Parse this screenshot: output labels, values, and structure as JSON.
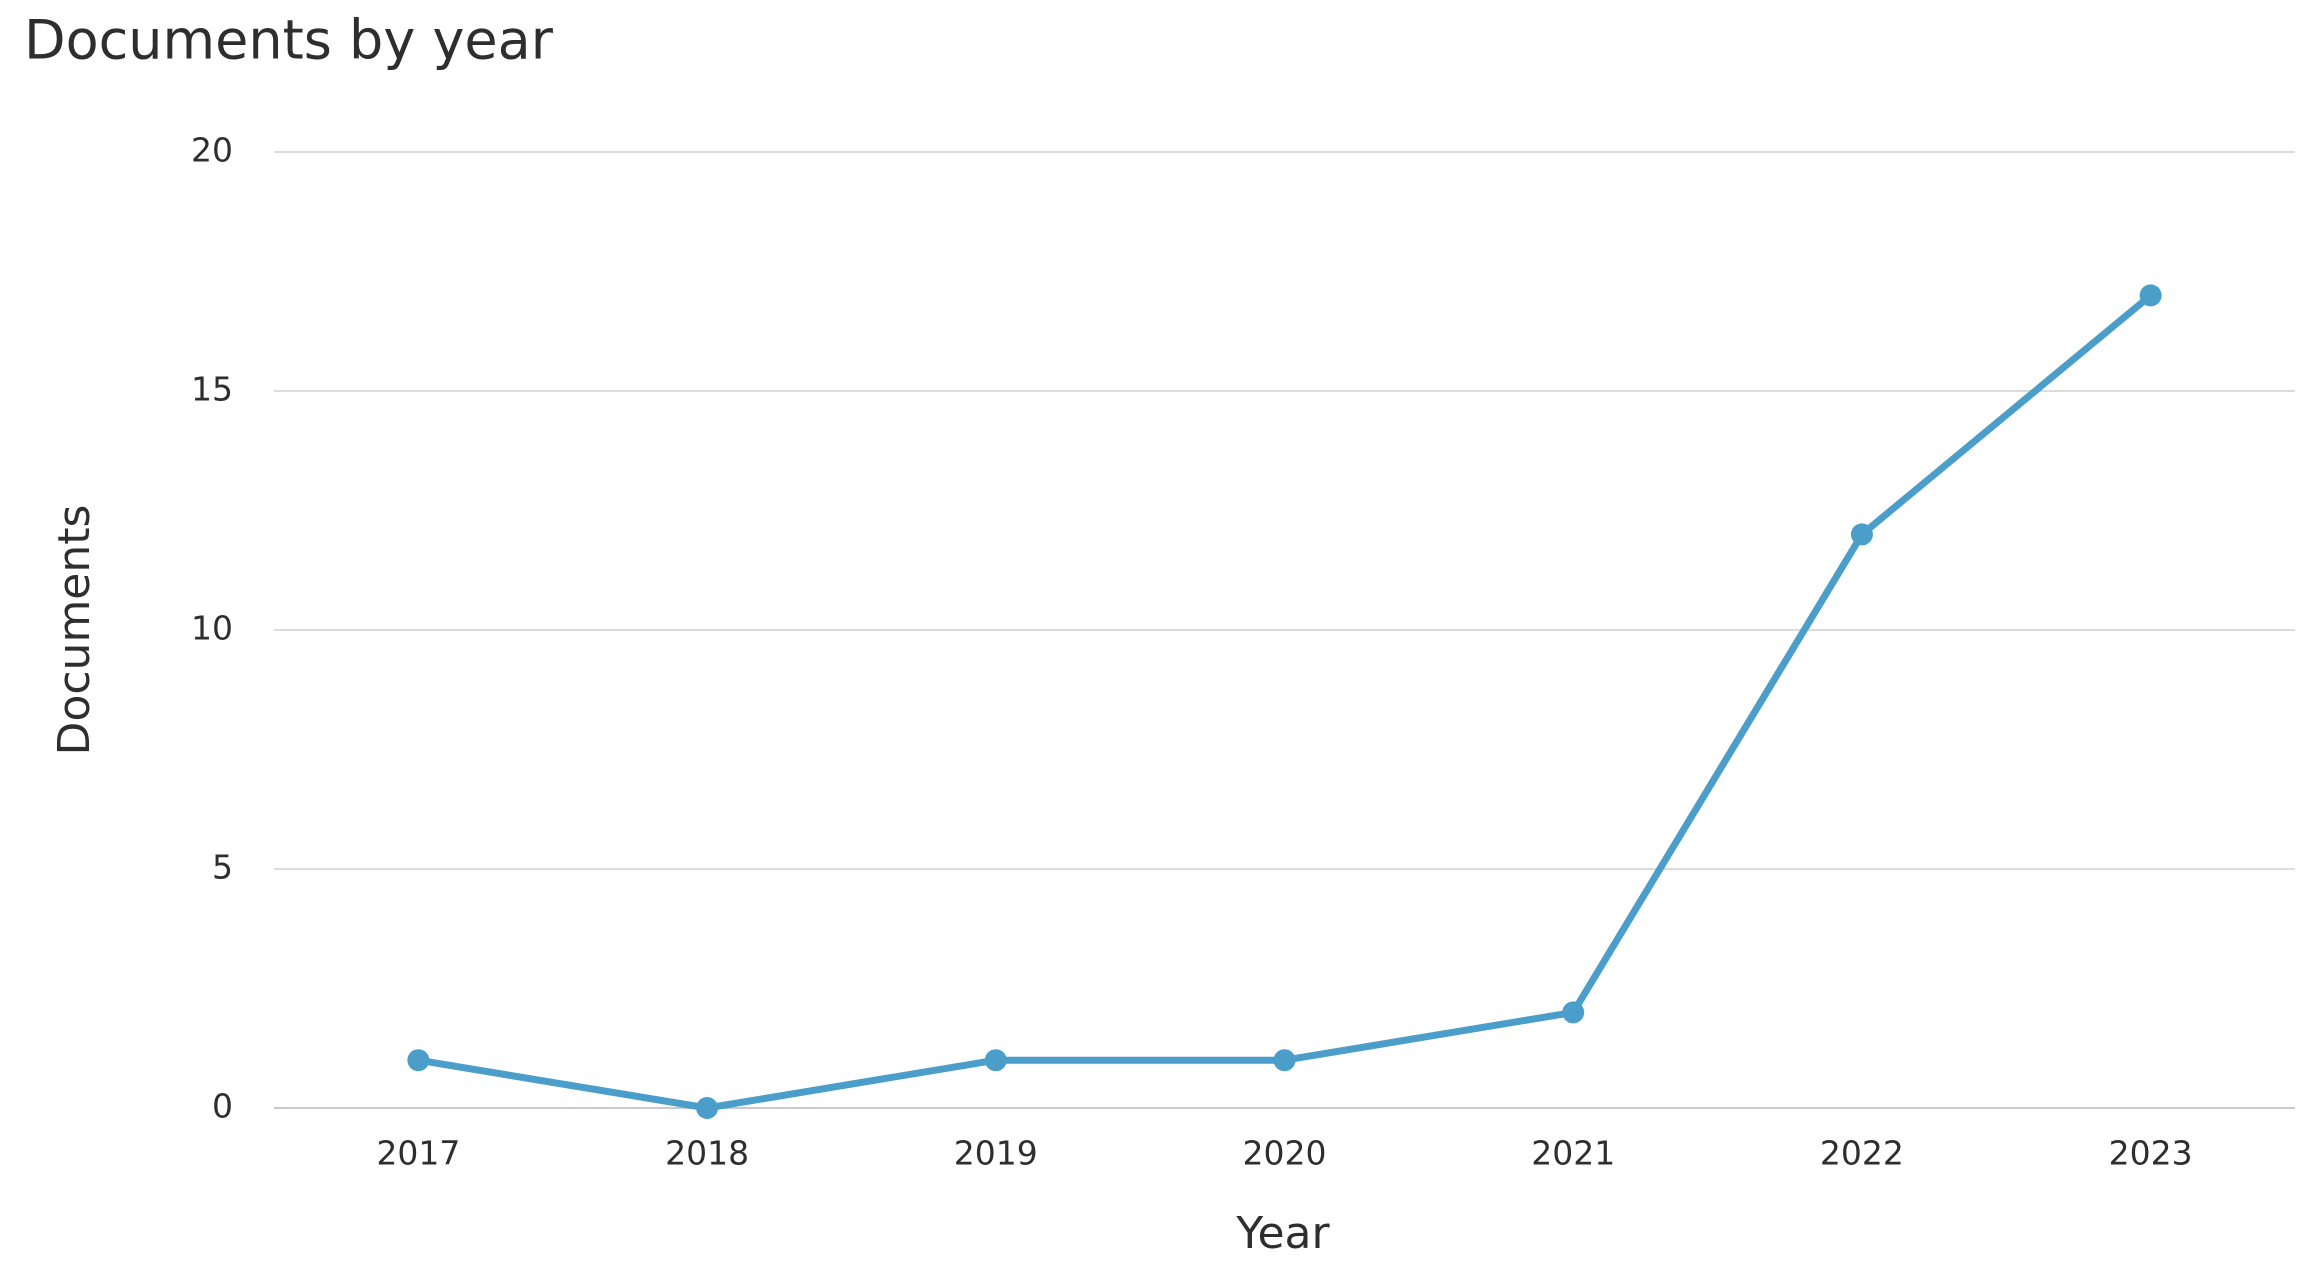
{
  "chart_data": {
    "type": "line",
    "title": "Documents by year",
    "x_label": "Year",
    "y_label": "Documents",
    "categories": [
      "2017",
      "2018",
      "2019",
      "2020",
      "2021",
      "2022",
      "2023"
    ],
    "values": [
      1,
      0,
      1,
      1,
      2,
      12,
      17
    ],
    "color": "#4a9ec9",
    "ylim": [
      0,
      20
    ],
    "yticks": [
      0,
      5,
      10,
      15,
      20
    ],
    "grid": true
  }
}
